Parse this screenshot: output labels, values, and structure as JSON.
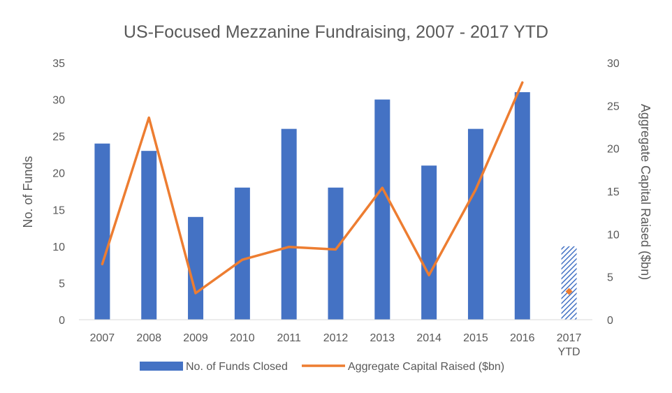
{
  "chart_data": {
    "type": "bar",
    "title": "US-Focused Mezzanine Fundraising, 2007 - 2017 YTD",
    "categories": [
      "2007",
      "2008",
      "2009",
      "2010",
      "2011",
      "2012",
      "2013",
      "2014",
      "2015",
      "2016",
      "2017 YTD"
    ],
    "series": [
      {
        "name": "No. of Funds Closed",
        "type": "bar",
        "axis": "left",
        "color": "#4472C4",
        "values": [
          24,
          23,
          14,
          18,
          26,
          18,
          30,
          21,
          26,
          31,
          10
        ]
      },
      {
        "name": "Aggregate Capital Raised ($bn)",
        "type": "line",
        "axis": "right",
        "color": "#ED7D31",
        "values": [
          6.5,
          23.6,
          3.1,
          7.0,
          8.5,
          8.2,
          15.4,
          5.2,
          15.2,
          27.7,
          3.3
        ]
      }
    ],
    "ylabel": "No. of Funds",
    "y2label": "Aggregate Capital Raised ($bn)",
    "ylim": [
      0,
      35
    ],
    "y2lim": [
      0,
      30
    ],
    "yticks": [
      "0",
      "5",
      "10",
      "15",
      "20",
      "25",
      "30",
      "35"
    ],
    "y2ticks": [
      "0",
      "5",
      "10",
      "15",
      "20",
      "25",
      "30"
    ],
    "grid": false,
    "legend": "bottom",
    "notes": "Last category (2017 YTD) bar drawn with hatched fill; its capital value shown as a single diamond marker, not joined to the line."
  }
}
